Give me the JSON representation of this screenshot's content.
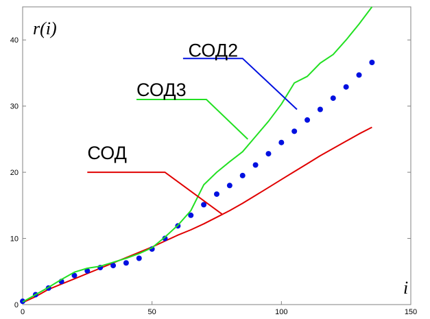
{
  "chart_data": {
    "type": "line",
    "title": "",
    "xlabel": "i",
    "ylabel": "r(i)",
    "xlim": [
      0,
      150
    ],
    "ylim": [
      0,
      45
    ],
    "xticks": [
      0,
      50,
      100,
      150
    ],
    "yticks": [
      0,
      10,
      20,
      30,
      40
    ],
    "xtick_labels": [
      "0",
      "50",
      "100",
      "150"
    ],
    "ytick_labels": [
      "0",
      "10",
      "20",
      "30",
      "40"
    ],
    "grid": false,
    "legend": "none",
    "series": [
      {
        "name": "СОД",
        "style": "line",
        "color": "#e00000",
        "x": [
          0,
          5,
          10,
          15,
          20,
          25,
          30,
          35,
          40,
          45,
          50,
          55,
          60,
          65,
          70,
          75,
          80,
          85,
          90,
          95,
          100,
          105,
          110,
          115,
          120,
          125,
          130,
          135
        ],
        "y": [
          0.3,
          1.2,
          2.3,
          3.1,
          3.9,
          4.7,
          5.5,
          6.3,
          7.1,
          7.9,
          8.7,
          9.6,
          10.5,
          11.3,
          12.2,
          13.2,
          14.2,
          15.3,
          16.5,
          17.7,
          18.9,
          20.1,
          21.3,
          22.5,
          23.6,
          24.7,
          25.8,
          26.8
        ]
      },
      {
        "name": "СОД2",
        "style": "dots",
        "color": "#0010e0",
        "x": [
          0,
          5,
          10,
          15,
          20,
          25,
          30,
          35,
          40,
          45,
          50,
          55,
          60,
          65,
          70,
          75,
          80,
          85,
          90,
          95,
          100,
          105,
          110,
          115,
          120,
          125,
          130,
          135
        ],
        "y": [
          0.5,
          1.5,
          2.5,
          3.5,
          4.4,
          5.1,
          5.6,
          5.9,
          6.3,
          7.0,
          8.4,
          10.0,
          11.9,
          13.5,
          15.1,
          16.7,
          18.0,
          19.5,
          21.1,
          22.8,
          24.5,
          26.2,
          27.9,
          29.5,
          31.2,
          32.9,
          34.7,
          36.6
        ]
      },
      {
        "name": "СОД3",
        "style": "line",
        "color": "#22e022",
        "x": [
          0,
          5,
          10,
          15,
          20,
          25,
          30,
          35,
          40,
          45,
          50,
          55,
          60,
          65,
          70,
          75,
          80,
          85,
          90,
          95,
          100,
          105,
          110,
          115,
          120,
          125,
          130,
          135
        ],
        "y": [
          0.4,
          1.5,
          2.6,
          3.8,
          4.9,
          5.5,
          5.8,
          6.4,
          7.0,
          7.7,
          8.6,
          10.2,
          12.0,
          14.2,
          18.1,
          20.0,
          21.6,
          23.1,
          25.4,
          27.7,
          30.3,
          33.5,
          34.5,
          36.5,
          37.8,
          40.0,
          42.4,
          45.0
        ]
      }
    ],
    "annotations": [
      {
        "text": "СОД2",
        "color": "#0010e0",
        "text_xy": [
          64,
          37.5
        ],
        "line_from": [
          62,
          37.2
        ],
        "line_elbow": [
          85,
          37.2
        ],
        "line_to": [
          106,
          29.5
        ]
      },
      {
        "text": "СОД3",
        "color": "#22e022",
        "text_xy": [
          44,
          31.5
        ],
        "line_from": [
          44,
          31.0
        ],
        "line_elbow": [
          71,
          31.0
        ],
        "line_to": [
          87,
          25.0
        ]
      },
      {
        "text": "СОД",
        "color": "#e00000",
        "text_xy": [
          25,
          22.0
        ],
        "line_from": [
          25,
          20.0
        ],
        "line_elbow": [
          55,
          20.0
        ],
        "line_to": [
          77,
          13.7
        ]
      }
    ]
  }
}
